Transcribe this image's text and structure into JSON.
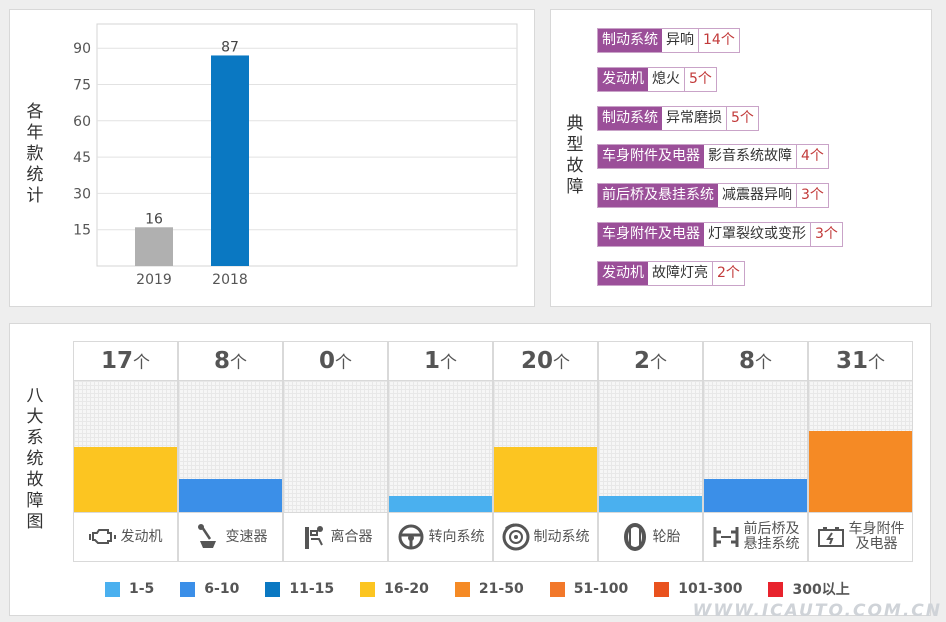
{
  "yearly": {
    "title_chars": [
      "各",
      "年",
      "款",
      "统",
      "计"
    ],
    "chart_data": {
      "type": "bar",
      "categories": [
        "2019",
        "2018"
      ],
      "values": [
        16,
        87
      ],
      "colors": [
        "#b0b0b0",
        "#0a78c2"
      ],
      "yticks": [
        15,
        30,
        45,
        60,
        75,
        90
      ],
      "ylim": [
        0,
        100
      ],
      "grid": true,
      "xlabel": "",
      "ylabel": ""
    }
  },
  "faults": {
    "title_chars": [
      "典",
      "型",
      "故",
      "障"
    ],
    "items": [
      {
        "system": "制动系统",
        "desc": "异响",
        "count": "14个"
      },
      {
        "system": "发动机",
        "desc": "熄火",
        "count": "5个"
      },
      {
        "system": "制动系统",
        "desc": "异常磨损",
        "count": "5个"
      },
      {
        "system": "车身附件及电器",
        "desc": "影音系统故障",
        "count": "4个"
      },
      {
        "system": "前后桥及悬挂系统",
        "desc": "减震器异响",
        "count": "3个"
      },
      {
        "system": "车身附件及电器",
        "desc": "灯罩裂纹或变形",
        "count": "3个"
      },
      {
        "system": "发动机",
        "desc": "故障灯亮",
        "count": "2个"
      }
    ]
  },
  "systems": {
    "title_chars": [
      "八",
      "大",
      "系",
      "统",
      "故",
      "障",
      "图"
    ],
    "unit": "个",
    "chart_data": {
      "type": "bar",
      "categories": [
        "发动机",
        "变速器",
        "离合器",
        "转向系统",
        "制动系统",
        "轮胎",
        "前后桥及\n悬挂系统",
        "车身附件\n及电器"
      ],
      "values": [
        17,
        8,
        0,
        1,
        20,
        2,
        8,
        31
      ],
      "icons": [
        "engine-icon",
        "gear-shift-icon",
        "clutch-icon",
        "steering-wheel-icon",
        "brake-disc-icon",
        "tire-icon",
        "suspension-icon",
        "battery-icon"
      ],
      "level_pct": [
        50,
        25,
        0,
        12,
        50,
        12,
        25,
        62
      ],
      "colors": [
        "#fcc521",
        "#3b8fe8",
        null,
        "#4ab0ef",
        "#fcc521",
        "#4ab0ef",
        "#3b8fe8",
        "#f58a25"
      ]
    },
    "legend": [
      {
        "label": "1-5",
        "color": "#4ab0ef"
      },
      {
        "label": "6-10",
        "color": "#3b8fe8"
      },
      {
        "label": "11-15",
        "color": "#0a78c2"
      },
      {
        "label": "16-20",
        "color": "#fcc521"
      },
      {
        "label": "21-50",
        "color": "#f58a25"
      },
      {
        "label": "51-100",
        "color": "#f2782a"
      },
      {
        "label": "101-300",
        "color": "#e9521e"
      },
      {
        "label": "300以上",
        "color": "#e8232d"
      }
    ]
  },
  "watermark": "WWW.ICAUTO.COM.CN"
}
